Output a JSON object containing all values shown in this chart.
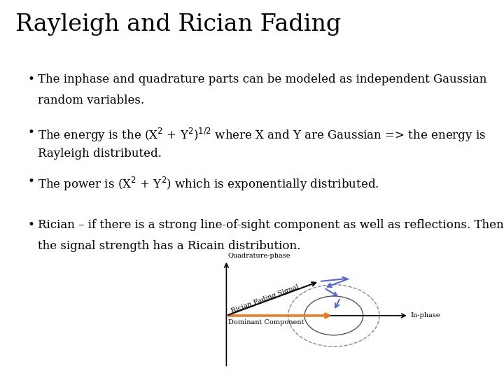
{
  "title": "Rayleigh and Rician Fading",
  "title_fontsize": 24,
  "bg_color": "#ffffff",
  "text_color": "#000000",
  "bullet1_line1": "The inphase and quadrature parts can be modeled as independent Gaussian",
  "bullet1_line2": "random variables.",
  "bullet2_line1": "The energy is the (X$^2$ + Y$^2$)$^{1/2}$ where X and Y are Gaussian => the energy is",
  "bullet2_line2": "Rayleigh distributed.",
  "bullet3_line1": "The power is (X$^2$ + Y$^2$) which is exponentially distributed.",
  "bullet4_line1": "Rician – if there is a strong line-of-sight component as well as reflections. Then",
  "bullet4_line2": "the signal strength has a Ricain distribution.",
  "bullet_fontsize": 12,
  "orange_color": "#e87722",
  "blue_color": "#5566cc",
  "diagram_label_fontsize": 7,
  "label_quadrature": "Quadrature-phase",
  "label_inphase": "In-phase",
  "label_dominant": "Dominant Component",
  "label_rician": "Rician Fading Signal"
}
